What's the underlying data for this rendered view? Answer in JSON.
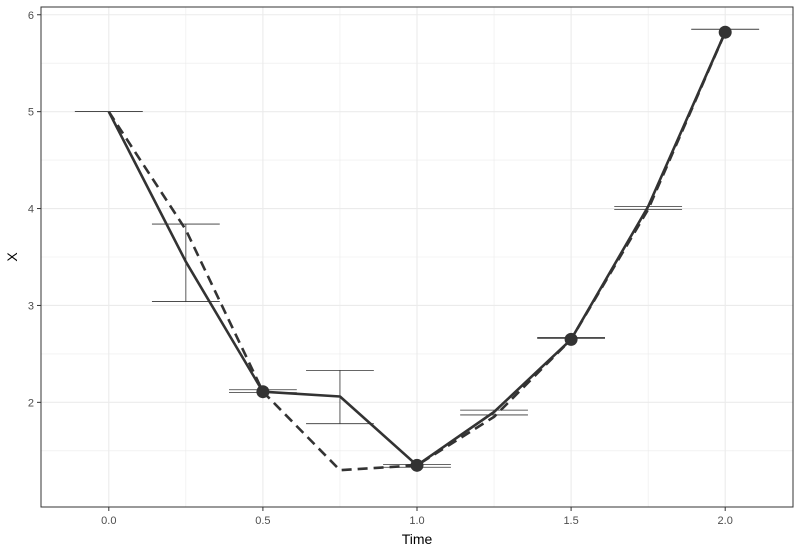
{
  "chart_data": {
    "type": "line",
    "xlabel": "Time",
    "ylabel": "X",
    "xlim": [
      -0.22,
      2.22
    ],
    "ylim": [
      0.92,
      6.08
    ],
    "x_ticks": [
      0.0,
      0.5,
      1.0,
      1.5,
      2.0
    ],
    "x_tick_labels": [
      "0.0",
      "0.5",
      "1.0",
      "1.5",
      "2.0"
    ],
    "y_ticks": [
      2,
      3,
      4,
      5,
      6
    ],
    "y_tick_labels": [
      "2",
      "3",
      "4",
      "5",
      "6"
    ],
    "grid": true,
    "series": [
      {
        "style": "solid",
        "x": [
          0.0,
          0.25,
          0.5,
          0.75,
          1.0,
          1.25,
          1.5,
          1.75,
          2.0
        ],
        "y": [
          5.0,
          3.45,
          2.11,
          2.06,
          1.35,
          1.9,
          2.65,
          4.02,
          5.82
        ]
      },
      {
        "style": "dashed",
        "x": [
          0.0,
          0.25,
          0.5,
          0.75,
          1.0,
          1.25,
          1.5,
          1.75,
          2.0
        ],
        "y": [
          5.0,
          3.78,
          2.11,
          1.3,
          1.35,
          1.85,
          2.65,
          3.99,
          5.82
        ]
      }
    ],
    "points": {
      "x": [
        0.5,
        1.0,
        1.5,
        2.0
      ],
      "y": [
        2.11,
        1.35,
        2.65,
        5.82
      ]
    },
    "error_bars": [
      {
        "x": 0.0,
        "ymin": 5.0,
        "ymax": 5.0
      },
      {
        "x": 0.25,
        "ymin": 3.04,
        "ymax": 3.84
      },
      {
        "x": 0.5,
        "ymin": 2.1,
        "ymax": 2.13
      },
      {
        "x": 0.75,
        "ymin": 1.78,
        "ymax": 2.33
      },
      {
        "x": 1.0,
        "ymin": 1.33,
        "ymax": 1.36
      },
      {
        "x": 1.25,
        "ymin": 1.87,
        "ymax": 1.92
      },
      {
        "x": 1.5,
        "ymin": 2.66,
        "ymax": 2.67
      },
      {
        "x": 1.75,
        "ymin": 3.99,
        "ymax": 4.02
      },
      {
        "x": 2.0,
        "ymin": 5.85,
        "ymax": 5.85
      }
    ],
    "colors": {
      "line": "#333333",
      "grid": "#ebebeb",
      "panel_border": "#333333"
    }
  }
}
